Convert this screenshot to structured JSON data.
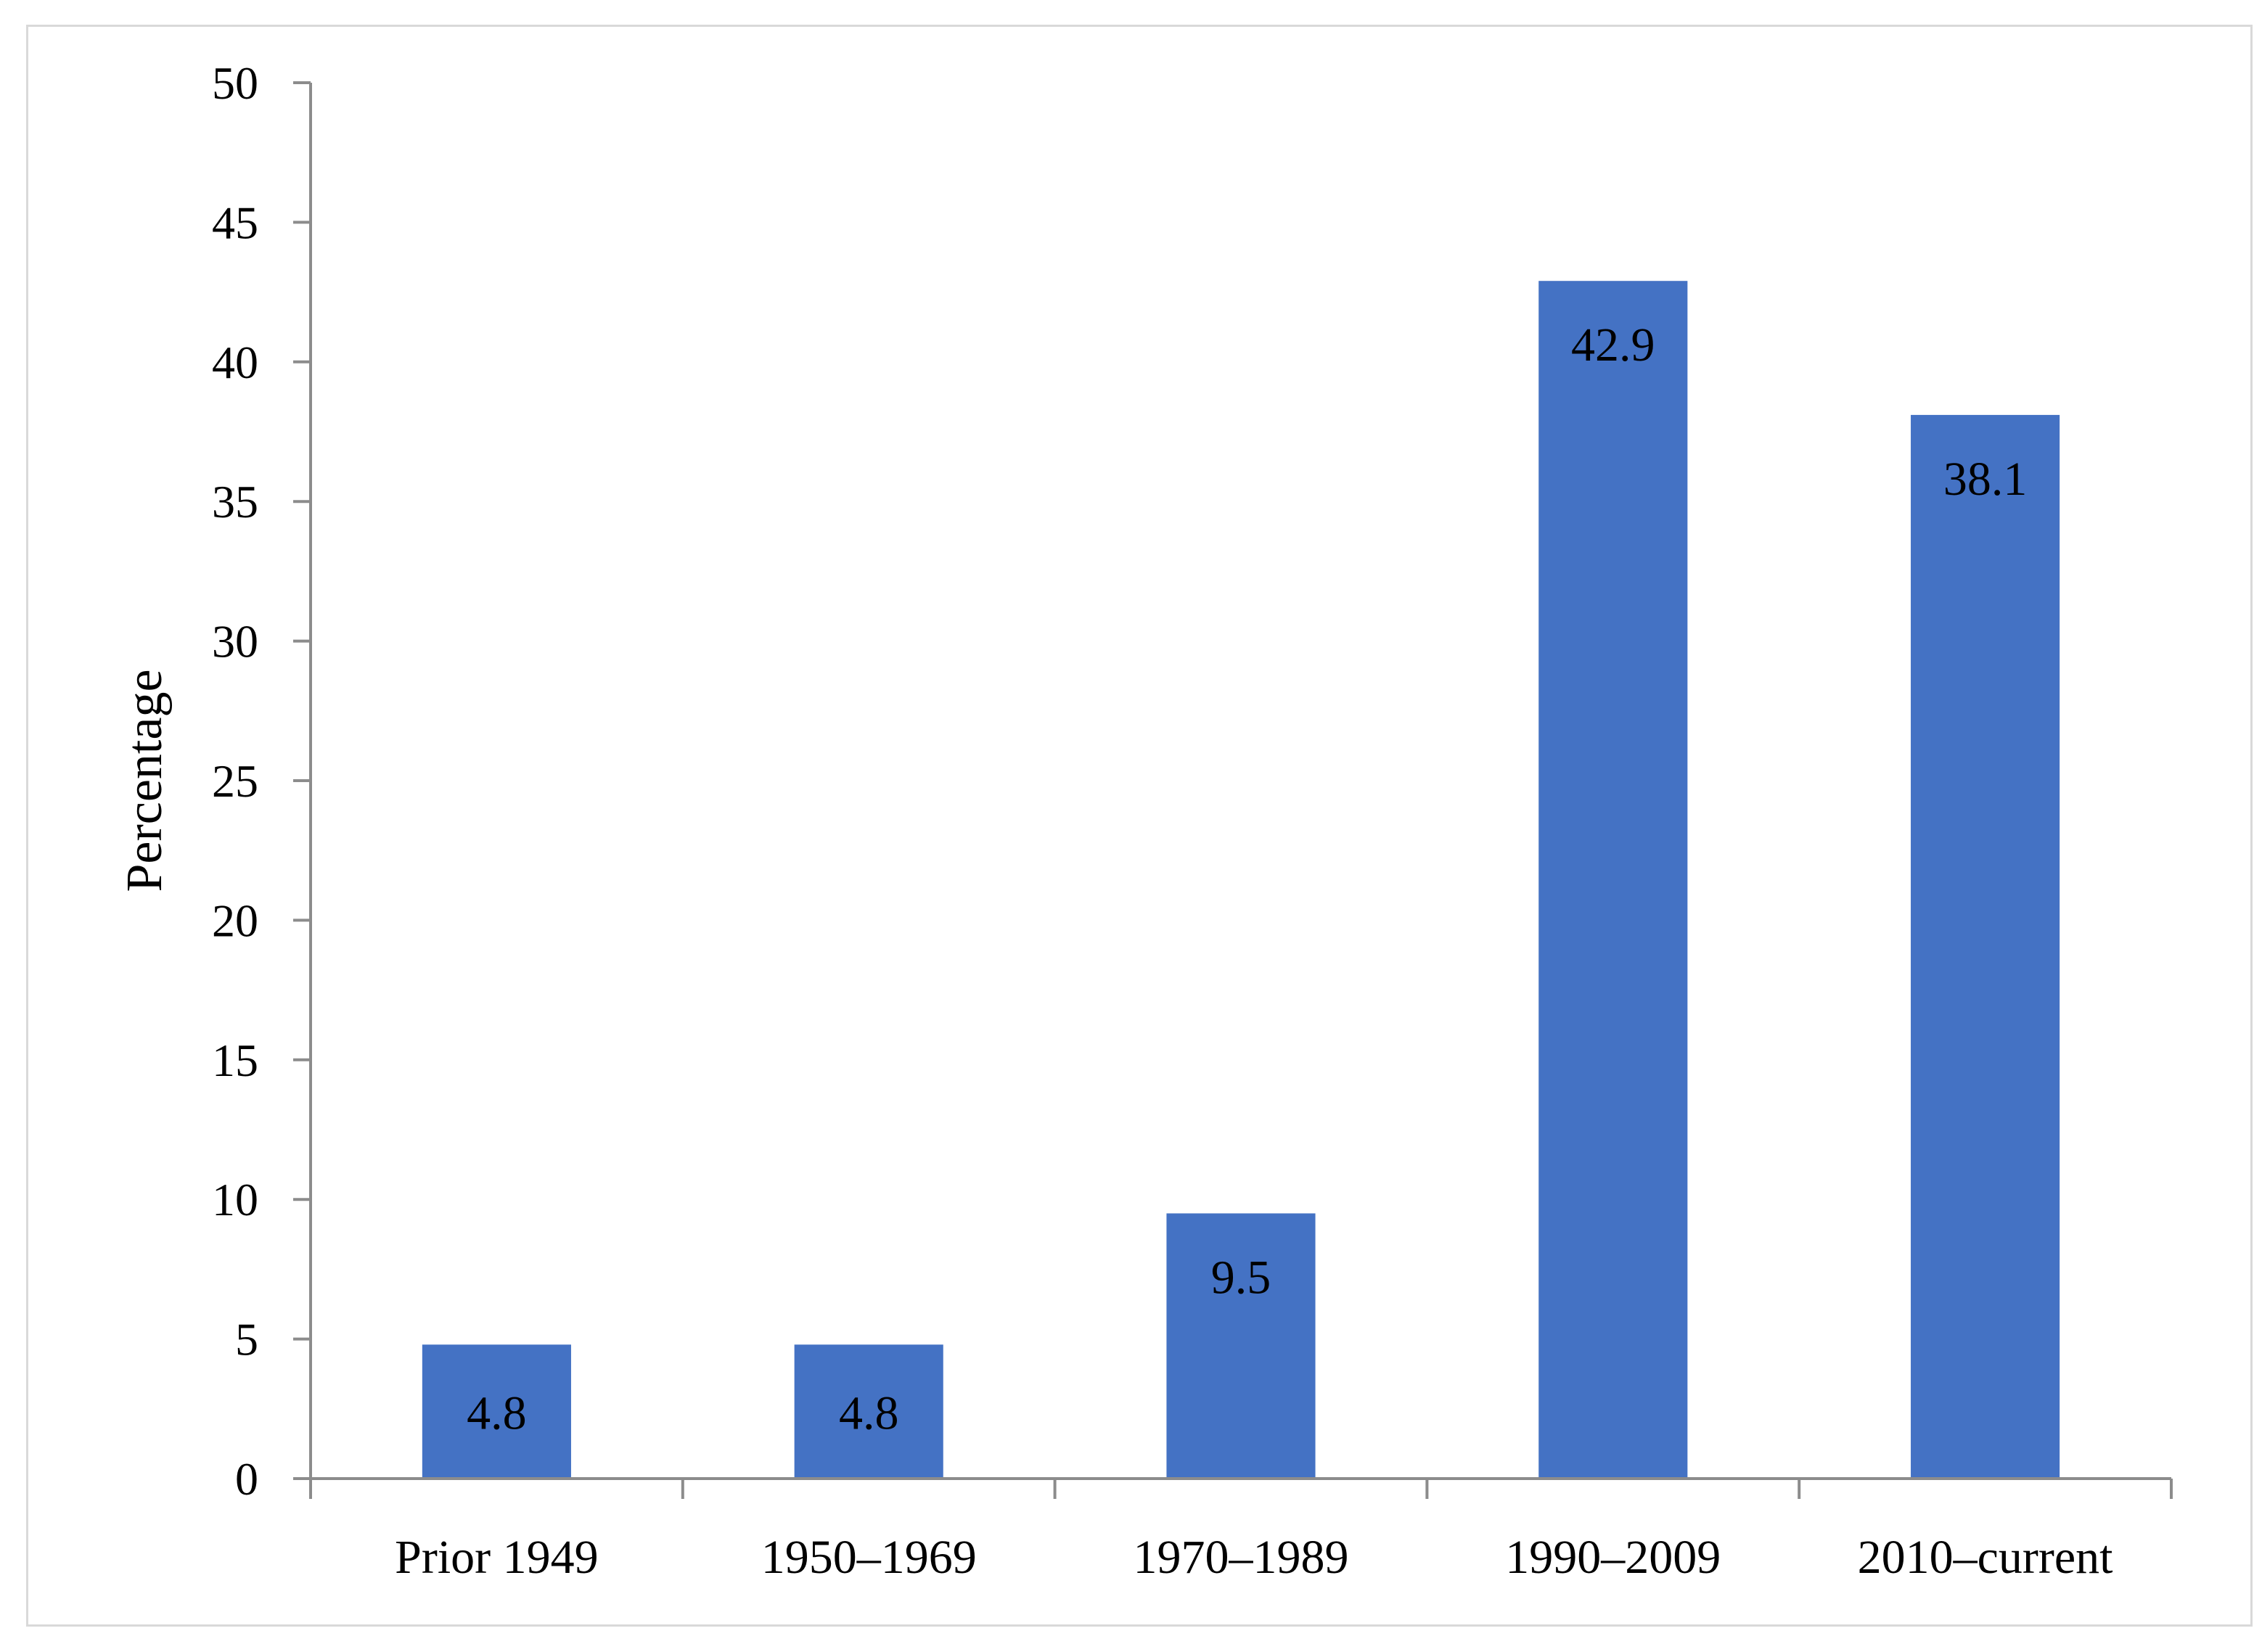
{
  "chart_data": {
    "type": "bar",
    "categories": [
      "Prior 1949",
      "1950–1969",
      "1970–1989",
      "1990–2009",
      "2010–current"
    ],
    "values": [
      4.8,
      4.8,
      9.5,
      42.9,
      38.1
    ],
    "data_labels": [
      "4.8",
      "4.8",
      "9.5",
      "42.9",
      "38.1"
    ],
    "title": "",
    "xlabel": "",
    "ylabel": "Percentage",
    "ylim": [
      0,
      50
    ],
    "yticks": [
      0,
      5,
      10,
      15,
      20,
      25,
      30,
      35,
      40,
      45,
      50
    ],
    "grid": false,
    "legend": "none",
    "bar_color": "#4472c4"
  }
}
